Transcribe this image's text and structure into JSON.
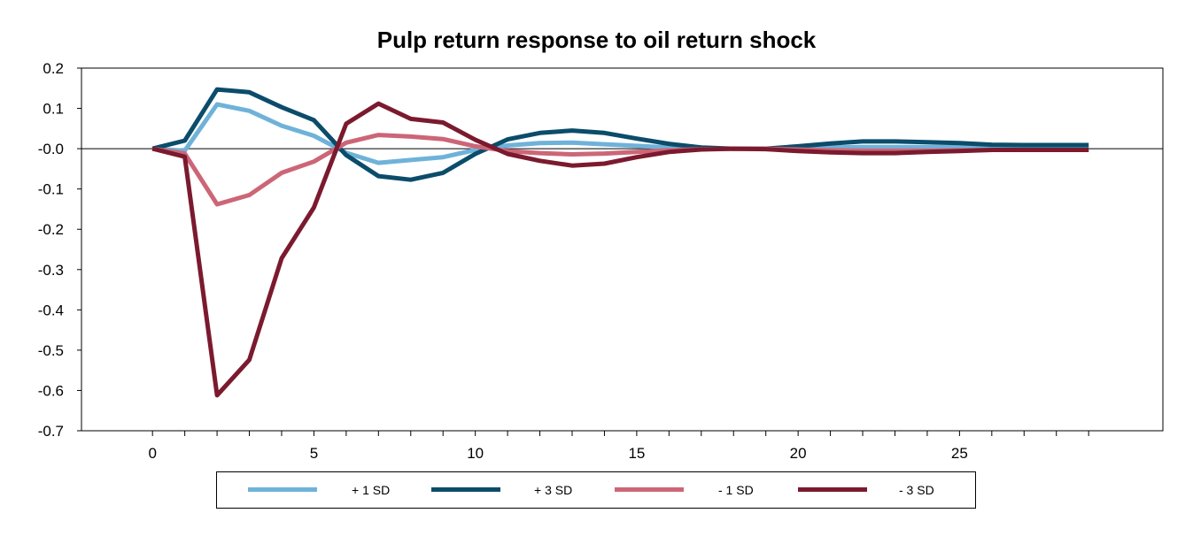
{
  "chart_data": {
    "type": "line",
    "title": "Pulp return response to oil return shock",
    "xlabel": "",
    "ylabel": "",
    "xlim": [
      -2.2,
      31.3
    ],
    "ylim": [
      -0.7,
      0.2
    ],
    "x_ticks": [
      0,
      5,
      10,
      15,
      20,
      25
    ],
    "y_ticks": [
      0.2,
      0.1,
      0.0,
      -0.1,
      -0.2,
      -0.3,
      -0.4,
      -0.5,
      -0.6,
      -0.7
    ],
    "y_tick_labels": [
      "0.2",
      "0.1",
      "-0.0",
      "-0.1",
      "-0.2",
      "-0.3",
      "-0.4",
      "-0.5",
      "-0.6",
      "-0.7"
    ],
    "zero_line": true,
    "grid": false,
    "legend_position": "bottom",
    "x": [
      0,
      1,
      2,
      3,
      4,
      5,
      6,
      7,
      8,
      9,
      10,
      11,
      12,
      13,
      14,
      15,
      16,
      17,
      18,
      19,
      20,
      21,
      22,
      23,
      24,
      25,
      26,
      27,
      28,
      29
    ],
    "series": [
      {
        "name": "+ 1 SD",
        "color": "#6fb2d9",
        "values": [
          0,
          -0.005,
          0.11,
          0.094,
          0.057,
          0.032,
          -0.01,
          -0.035,
          -0.028,
          -0.021,
          -0.003,
          0.008,
          0.014,
          0.015,
          0.011,
          0.007,
          0.003,
          0.001,
          0,
          0,
          0.002,
          0.003,
          0.004,
          0.004,
          0.004,
          0.004,
          0.004,
          0.004,
          0.004,
          0.004
        ]
      },
      {
        "name": "+ 3 SD",
        "color": "#0b4c6a",
        "values": [
          0,
          0.02,
          0.147,
          0.14,
          0.103,
          0.071,
          -0.016,
          -0.068,
          -0.077,
          -0.06,
          -0.013,
          0.023,
          0.039,
          0.045,
          0.039,
          0.025,
          0.012,
          0.003,
          0,
          0,
          0.006,
          0.013,
          0.018,
          0.018,
          0.016,
          0.014,
          0.01,
          0.009,
          0.009,
          0.009
        ]
      },
      {
        "name": "- 1 SD",
        "color": "#cc6677",
        "values": [
          0,
          -0.012,
          -0.138,
          -0.115,
          -0.06,
          -0.032,
          0.015,
          0.034,
          0.03,
          0.024,
          0.006,
          -0.006,
          -0.011,
          -0.014,
          -0.012,
          -0.008,
          -0.004,
          -0.001,
          0,
          0,
          -0.002,
          -0.004,
          -0.005,
          -0.005,
          -0.005,
          -0.004,
          -0.003,
          -0.003,
          -0.003,
          -0.003
        ]
      },
      {
        "name": "- 3 SD",
        "color": "#7b1a2e",
        "values": [
          0,
          -0.02,
          -0.612,
          -0.524,
          -0.272,
          -0.146,
          0.062,
          0.112,
          0.074,
          0.065,
          0.022,
          -0.013,
          -0.03,
          -0.042,
          -0.037,
          -0.021,
          -0.008,
          -0.002,
          0,
          -0.001,
          -0.006,
          -0.009,
          -0.011,
          -0.011,
          -0.008,
          -0.006,
          -0.003,
          -0.003,
          -0.003,
          -0.003
        ]
      }
    ]
  }
}
